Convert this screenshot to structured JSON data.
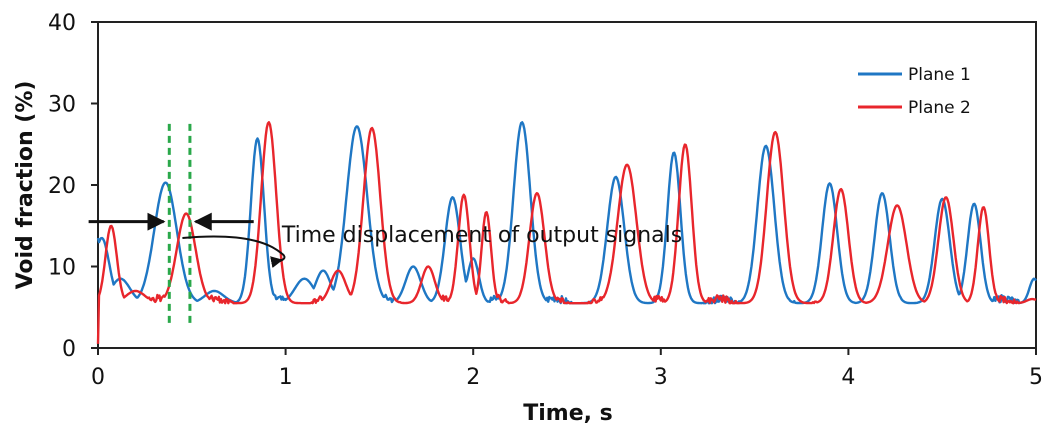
{
  "chart_data": {
    "type": "line",
    "xlabel": "Time, s",
    "ylabel": "Void fraction (%)",
    "xlim": [
      0,
      5
    ],
    "ylim": [
      0,
      40
    ],
    "x_ticks": [
      0,
      1,
      2,
      3,
      4,
      5
    ],
    "y_ticks": [
      0,
      10,
      20,
      30,
      40
    ],
    "grid": false,
    "legend_position": "top-right",
    "baseline": 5.5,
    "series": [
      {
        "name": "Plane 1",
        "color": "#1f77c4",
        "start": [
          0.0,
          13.5
        ],
        "peaks": [
          [
            0.02,
            13.5,
            0.04
          ],
          [
            0.12,
            8.5,
            0.05
          ],
          [
            0.36,
            20.3,
            0.06
          ],
          [
            0.62,
            7.0,
            0.05
          ],
          [
            0.85,
            25.7,
            0.035
          ],
          [
            1.1,
            8.5,
            0.05
          ],
          [
            1.2,
            9.5,
            0.04
          ],
          [
            1.38,
            27.2,
            0.055
          ],
          [
            1.68,
            10.0,
            0.04
          ],
          [
            1.89,
            18.5,
            0.04
          ],
          [
            2.0,
            11.0,
            0.03
          ],
          [
            2.26,
            27.7,
            0.045
          ],
          [
            2.76,
            21.0,
            0.045
          ],
          [
            3.07,
            24.0,
            0.035
          ],
          [
            3.56,
            24.8,
            0.045
          ],
          [
            3.9,
            20.2,
            0.04
          ],
          [
            4.18,
            19.0,
            0.04
          ],
          [
            4.5,
            18.3,
            0.04
          ],
          [
            4.67,
            17.7,
            0.035
          ],
          [
            4.99,
            8.5,
            0.025
          ]
        ]
      },
      {
        "name": "Plane 2",
        "color": "#e8262c",
        "start": [
          0.0,
          0.5
        ],
        "peaks": [
          [
            0.07,
            15.0,
            0.03
          ],
          [
            0.2,
            7.0,
            0.05
          ],
          [
            0.47,
            16.5,
            0.05
          ],
          [
            0.91,
            27.7,
            0.04
          ],
          [
            1.28,
            9.5,
            0.04
          ],
          [
            1.46,
            27.0,
            0.045
          ],
          [
            1.76,
            10.0,
            0.035
          ],
          [
            1.95,
            18.8,
            0.03
          ],
          [
            2.07,
            16.7,
            0.025
          ],
          [
            2.34,
            19.0,
            0.04
          ],
          [
            2.82,
            22.5,
            0.05
          ],
          [
            3.13,
            25.0,
            0.035
          ],
          [
            3.61,
            26.5,
            0.045
          ],
          [
            3.96,
            19.5,
            0.04
          ],
          [
            4.26,
            17.5,
            0.05
          ],
          [
            4.52,
            18.5,
            0.04
          ],
          [
            4.72,
            17.3,
            0.03
          ],
          [
            4.98,
            6.0,
            0.03
          ]
        ]
      }
    ],
    "markers": {
      "dashed_lines_x": [
        0.38,
        0.49
      ],
      "dashed_range_y": [
        3,
        27.5
      ],
      "color": "#2aa84a"
    },
    "annotation": {
      "text": "Time displacement of output signals",
      "text_anchor": [
        0.98,
        13.0
      ],
      "curve_from": [
        0.45,
        13.5
      ],
      "curve_to": [
        0.98,
        10.8
      ],
      "left_arrow": {
        "from": [
          -0.05,
          15.5
        ],
        "to": [
          0.35,
          15.5
        ]
      },
      "right_arrow": {
        "from": [
          0.83,
          15.5
        ],
        "to": [
          0.52,
          15.5
        ]
      }
    }
  }
}
